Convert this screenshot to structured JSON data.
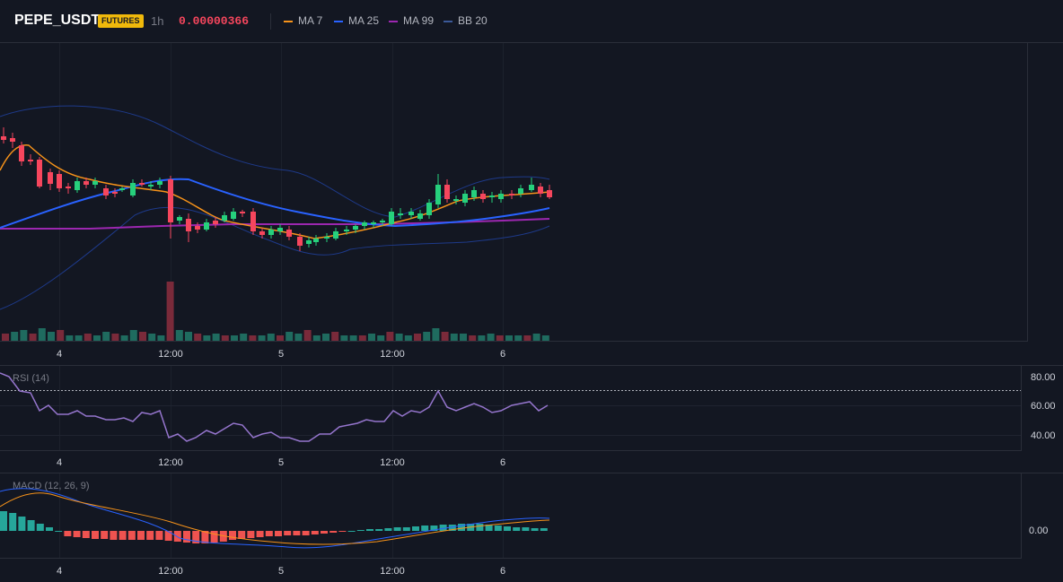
{
  "header": {
    "symbol": "PEPE_USDT",
    "badge": "FUTURES",
    "timeframe": "1h",
    "price": "0.00000366",
    "legend": [
      {
        "label": "MA 7",
        "color": "#f7931a"
      },
      {
        "label": "MA 25",
        "color": "#2962ff"
      },
      {
        "label": "MA 99",
        "color": "#9c27b0"
      },
      {
        "label": "BB 20",
        "color": "#1e3a8a"
      }
    ]
  },
  "colors": {
    "up": "#26d07c",
    "down": "#f6465d",
    "volume_up": "#1f6b5f",
    "volume_down": "#7a2a3a",
    "rsi": "#9575cd",
    "macd": "#2962ff",
    "signal": "#f7931a",
    "hist_up": "#26a69a",
    "hist_down": "#ef5350"
  },
  "time_axis": {
    "labels": [
      "4",
      "12:00",
      "5",
      "12:00",
      "6"
    ]
  },
  "rsi": {
    "title": "RSI (14)",
    "ticks": [
      "80.00",
      "60.00",
      "40.00"
    ]
  },
  "macd": {
    "title": "MACD (12, 26, 9)",
    "ticks": [
      "0.00"
    ]
  }
}
